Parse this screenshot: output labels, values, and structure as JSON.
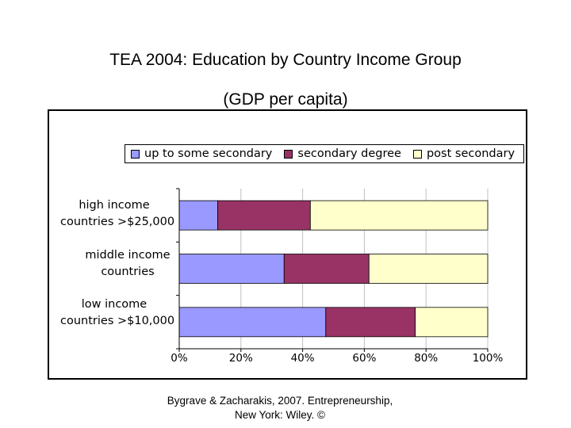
{
  "title_line1": "TEA 2004:  Education by Country Income Group",
  "title_line2": "(GDP per capita)",
  "credit_line1": "Bygrave & Zacharakis, 2007.  Entrepreneurship,",
  "credit_line2": "New York: Wiley.  ©",
  "colors": {
    "series1": "#9999ff",
    "series2": "#993366",
    "series3": "#ffffcc",
    "gridline": "#c0c0c0"
  },
  "chart_data": {
    "type": "bar",
    "orientation": "horizontal",
    "stacked": "percent",
    "categories": [
      "high income countries >$25,000",
      "middle income countries",
      "low income countries >$10,000"
    ],
    "category_lines": [
      [
        "high income",
        "countries >$25,000"
      ],
      [
        "middle income",
        "countries"
      ],
      [
        "low income",
        "countries >$10,000"
      ]
    ],
    "series": [
      {
        "name": "up to some secondary",
        "values": [
          12.5,
          34,
          47.5
        ]
      },
      {
        "name": "secondary degree",
        "values": [
          30,
          27.5,
          29
        ]
      },
      {
        "name": "post secondary",
        "values": [
          57.5,
          38.5,
          23.5
        ]
      }
    ],
    "xlim": [
      0,
      100
    ],
    "x_ticks": [
      0,
      20,
      40,
      60,
      80,
      100
    ],
    "x_tick_labels": [
      "0%",
      "20%",
      "40%",
      "60%",
      "80%",
      "100%"
    ],
    "grid": true,
    "legend_position": "top"
  }
}
